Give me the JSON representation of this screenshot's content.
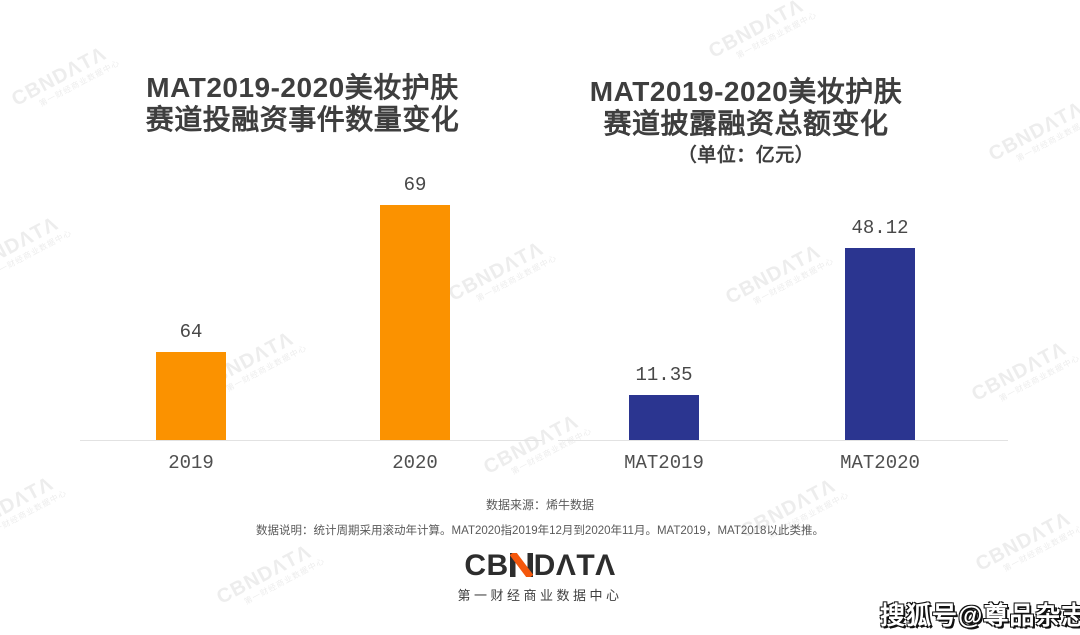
{
  "chart_data": [
    {
      "type": "bar",
      "title": "MAT2019-2020美妆护肤赛道投融资事件数量变化",
      "title_lines": [
        "MAT2019-2020美妆护肤",
        "赛道投融资事件数量变化"
      ],
      "unit_label": "",
      "categories": [
        "2019",
        "2020"
      ],
      "values": [
        64,
        69
      ],
      "value_labels": [
        "64",
        "69"
      ],
      "bar_color": "#FB9200",
      "ylim": [
        61,
        69
      ],
      "grid": false,
      "legend": "none"
    },
    {
      "type": "bar",
      "title": "MAT2019-2020美妆护肤赛道披露融资总额变化",
      "title_lines": [
        "MAT2019-2020美妆护肤",
        "赛道披露融资总额变化"
      ],
      "unit_label": "（单位：亿元）",
      "categories": [
        "MAT2019",
        "MAT2020"
      ],
      "values": [
        11.35,
        48.12
      ],
      "value_labels": [
        "11.35",
        "48.12"
      ],
      "bar_color": "#2B3590",
      "ylim": [
        0,
        48.12
      ],
      "grid": false,
      "legend": "none"
    }
  ],
  "footer": {
    "source": "数据来源：烯牛数据",
    "note": "数据说明：统计周期采用滚动年计算。MAT2020指2019年12月到2020年11月。MAT2019，MAT2018以此类推。",
    "logo": {
      "name": "CBNDATA",
      "prefix": "CB",
      "suffix": "DΛTΛ",
      "subtitle": "第一财经商业数据中心",
      "accent_color": "#F4570C",
      "text_color": "#2D2D2D"
    }
  },
  "watermark": {
    "text": "CBNDΛTΛ",
    "subtext": "第一财经商业数据中心",
    "color": "#EDEDED"
  },
  "overlay": {
    "sohu_badge": "搜狐号@尊品杂志"
  }
}
